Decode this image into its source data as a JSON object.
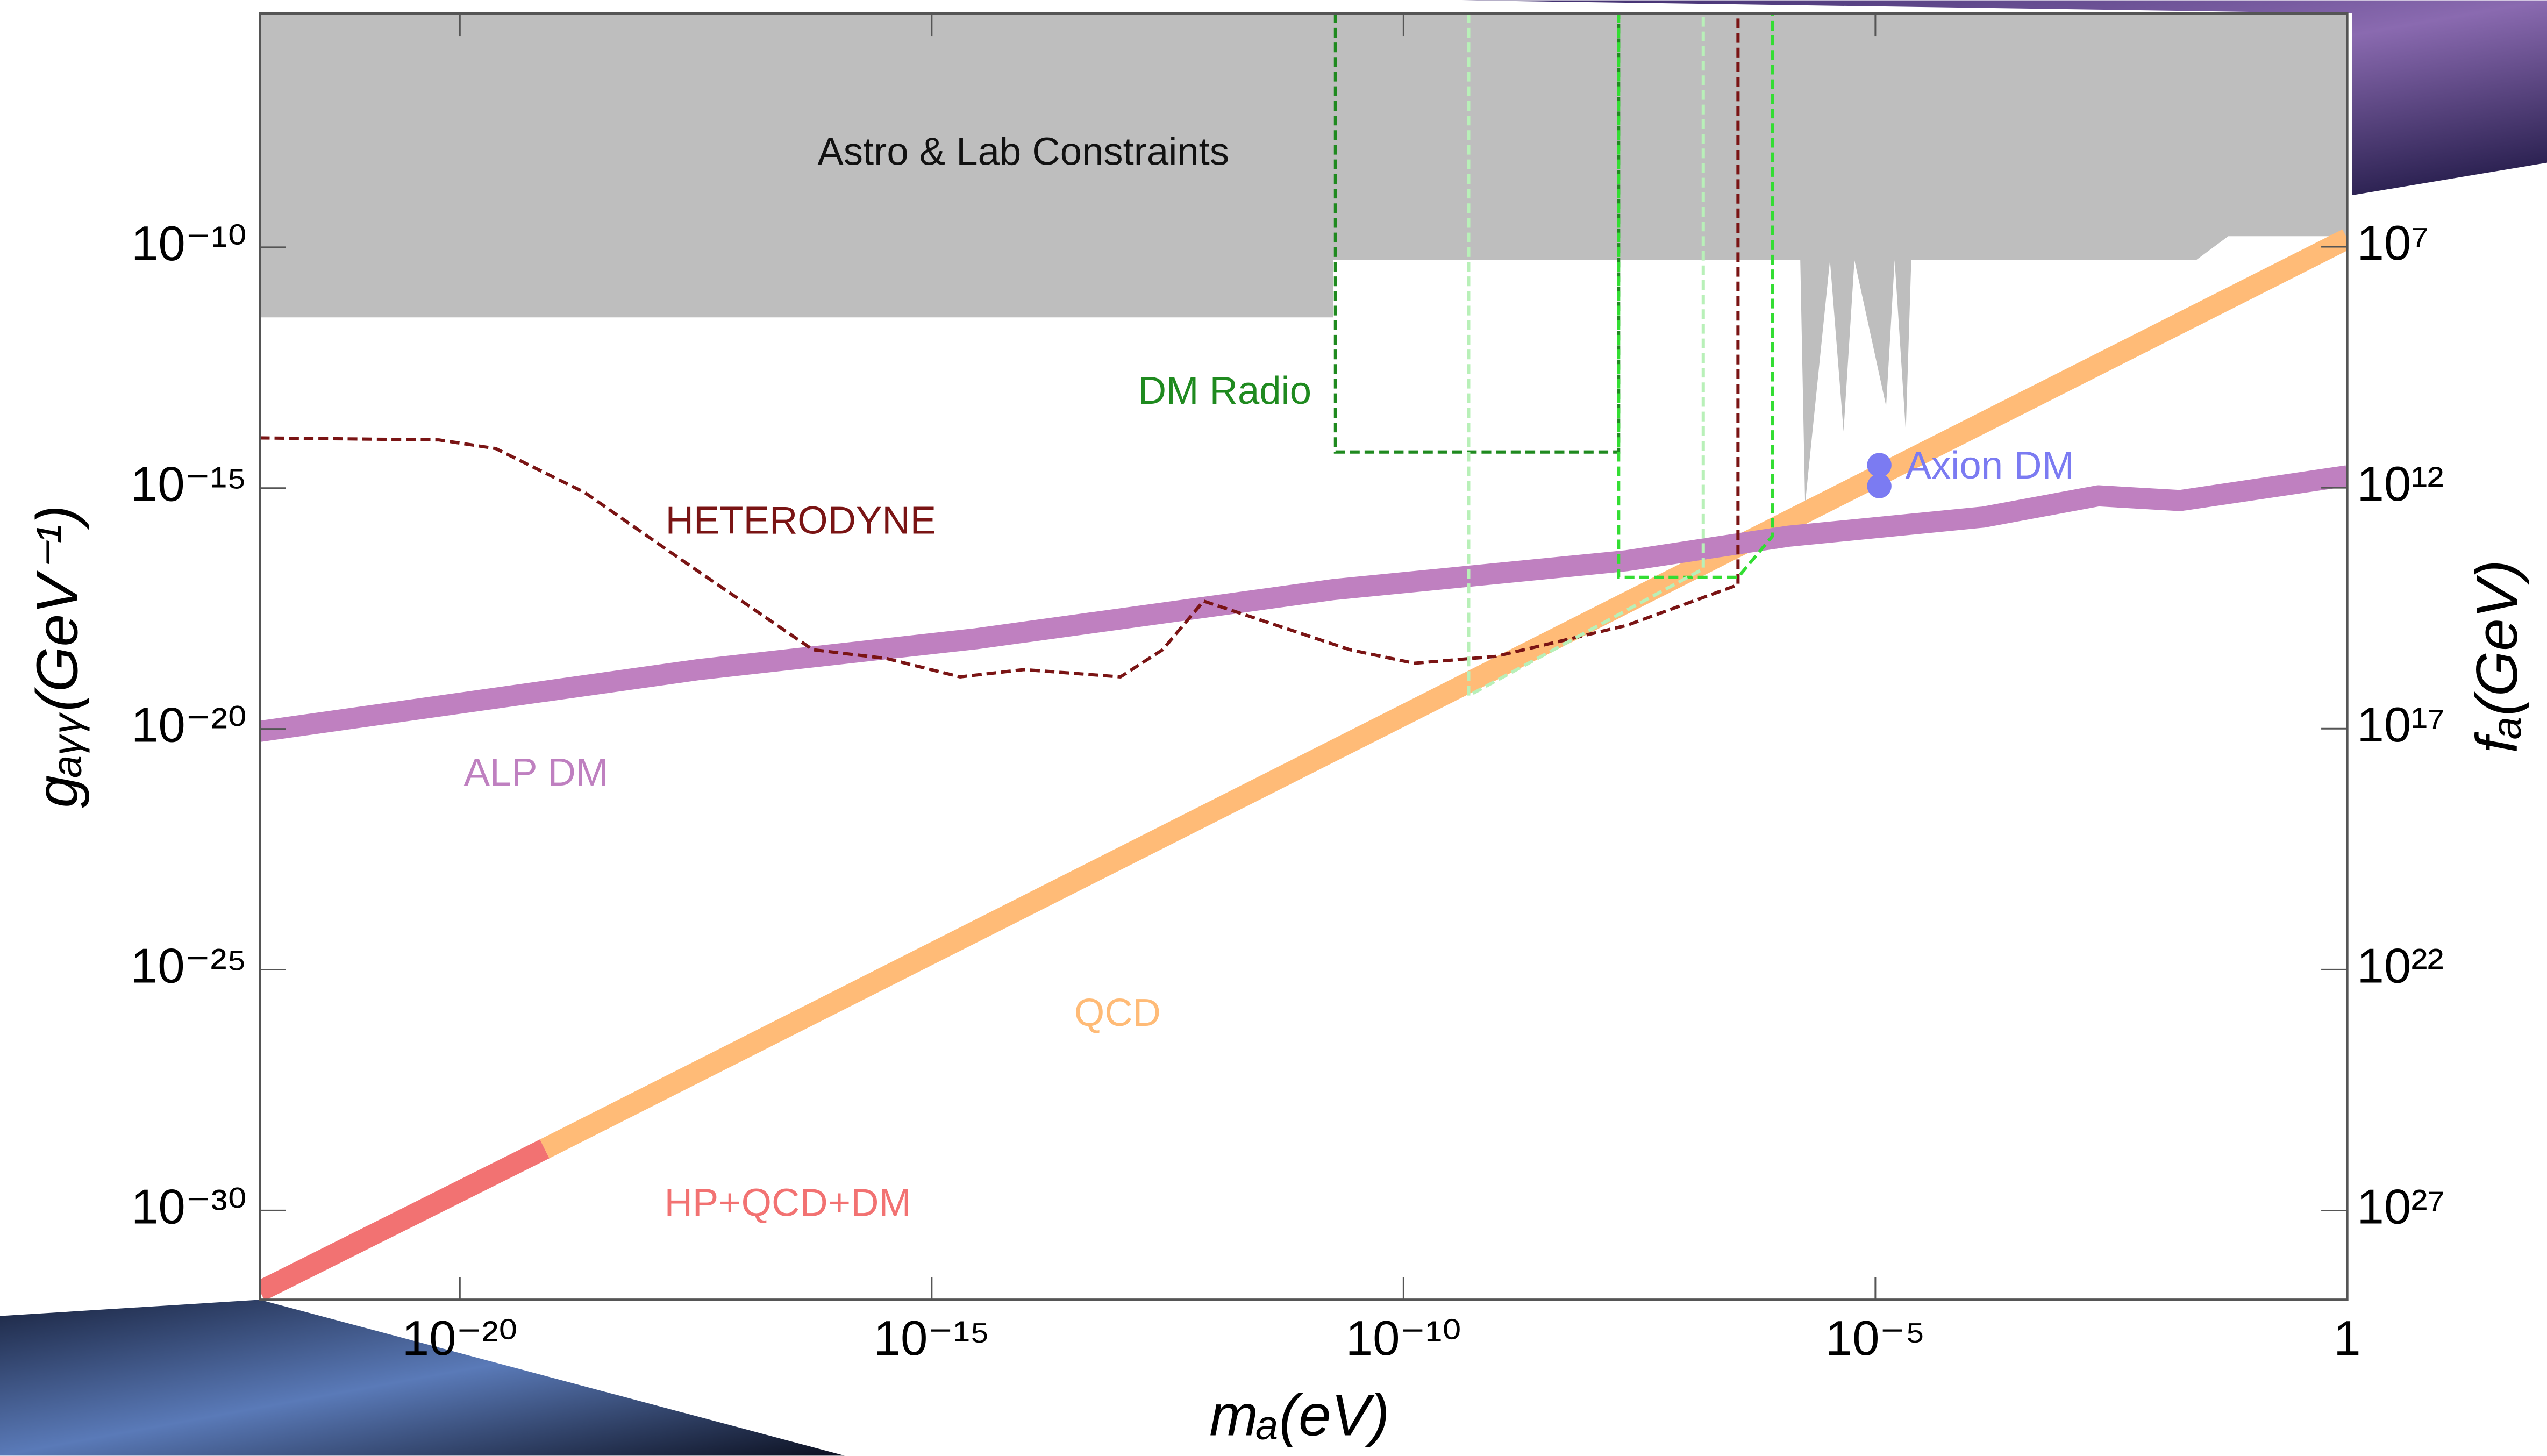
{
  "chart_data": {
    "type": "line",
    "x_label": "mₐ(eV)",
    "y_label": "gₐᵧᵧ(GeV⁻¹)",
    "y2_label": "fₐ(GeV)",
    "log_x": true,
    "log_y": true,
    "xlim": [
      7.6e-23,
      1
    ],
    "ylim": [
      1.4e-32,
      7.2e-06
    ],
    "y2lim": [
      7.1e+28,
      143
    ],
    "xticks": [
      {
        "value": 1e-20,
        "label": "10⁻²⁰"
      },
      {
        "value": 1e-15,
        "label": "10⁻¹⁵"
      },
      {
        "value": 1e-10,
        "label": "10⁻¹⁰"
      },
      {
        "value": 1e-05,
        "label": "10⁻⁵"
      },
      1
    ],
    "yticks": [
      {
        "value": 1e-30,
        "label": "10⁻³⁰"
      },
      {
        "value": 1e-25,
        "label": "10⁻²⁵"
      },
      {
        "value": 1e-20,
        "label": "10⁻²⁰"
      },
      {
        "value": 1e-15,
        "label": "10⁻¹⁵"
      },
      {
        "value": 1e-10,
        "label": "10⁻¹⁰"
      }
    ],
    "y2ticks": [
      {
        "value": 1e+27,
        "label": "10²⁷"
      },
      {
        "value": 1e+22,
        "label": "10²²"
      },
      {
        "value": 1e+17,
        "label": "10¹⁷"
      },
      {
        "value": 1000000000000.0,
        "label": "10¹²"
      },
      {
        "value": 10000000.0,
        "label": "10⁷"
      }
    ],
    "series": [
      {
        "name": "Astro & Lab Constraints",
        "kind": "area",
        "color": "#bebebe",
        "x": [
          7.6e-23,
          1.8e-11,
          1.8e-11,
          1.6e-06,
          1.8e-06,
          3.3e-06,
          4.6e-06,
          6e-06,
          1.3e-05,
          1.6e-05,
          2.1e-05,
          2.4e-05,
          0.025,
          0.055,
          1
        ],
        "values": [
          3.5e-12,
          3.5e-12,
          5.4e-11,
          5.4e-11,
          4.7e-16,
          5.4e-11,
          1.5e-14,
          5.4e-11,
          5e-14,
          5.4e-11,
          1.5e-14,
          5.4e-11,
          5.4e-11,
          1.7e-10,
          1.7e-10
        ]
      },
      {
        "name": "QCD",
        "kind": "band",
        "color": "#ffbb77",
        "x": [
          7.9e-20,
          1
        ],
        "values": [
          1.9e-29,
          1.5e-10
        ]
      },
      {
        "name": "HP+QCD+DM",
        "kind": "band",
        "color": "#f27272",
        "x": [
          7.6e-23,
          7.9e-20
        ],
        "values": [
          2.1e-32,
          1.9e-29
        ]
      },
      {
        "name": "ALP DM",
        "kind": "band",
        "color": "#bf80c0",
        "x": [
          7.6e-23,
          3.4e-18,
          2.9e-15,
          1.8e-11,
          2.3e-08,
          1.2e-06,
          0.00014,
          0.0023,
          0.017,
          1
        ],
        "values": [
          8.9e-21,
          1.7e-19,
          7.4e-19,
          7.8e-18,
          3.1e-17,
          1e-16,
          2.5e-16,
          6.9e-16,
          5.5e-16,
          1.8e-15
        ]
      },
      {
        "name": "HETERODYNE",
        "kind": "dashed",
        "color": "#7a1414",
        "x": [
          7.6e-23,
          6e-21,
          2.4e-20,
          2.1e-19,
          2.3e-18,
          5.5e-17,
          3.3e-16,
          2e-15,
          9.5e-15,
          1e-13,
          2.8e-13,
          7.6e-13,
          2e-12,
          2.7e-11,
          1.3e-10,
          9.5e-10,
          2.3e-08,
          3.5e-07,
          3.5e-07
        ],
        "values": [
          1.1e-14,
          1e-14,
          6.6e-15,
          8.1e-16,
          3.1e-17,
          4.4e-19,
          2.9e-19,
          1.2e-19,
          1.7e-19,
          1.2e-19,
          4.4e-19,
          4.5e-18,
          2.4e-18,
          4.4e-19,
          2.3e-19,
          3.2e-19,
          1.4e-18,
          9.8e-18,
          7.2e-06
        ]
      },
      {
        "name": "DM Radio",
        "kind": "dashed",
        "color": "#1f8a1f",
        "x": [
          1.9e-11,
          1.9e-11,
          1.9e-08,
          1.9e-08
        ],
        "values": [
          7.2e-06,
          5.6e-15,
          5.6e-15,
          7.2e-06
        ]
      },
      {
        "kind": "dashed",
        "color": "#33dd33",
        "x": [
          1.9e-08,
          1.9e-08,
          3.5e-07,
          8.1e-07,
          8.1e-07
        ],
        "values": [
          7.2e-06,
          1.4e-17,
          1.4e-17,
          1e-16,
          7.2e-06
        ]
      },
      {
        "kind": "dashed",
        "color": "#b8f0b8",
        "x": [
          4.9e-10,
          4.9e-10,
          1.5e-07,
          1.5e-07
        ],
        "values": [
          7.2e-06,
          4.9e-20,
          2.1e-17,
          7.2e-06
        ]
      },
      {
        "name": "Axion DM",
        "kind": "scatter",
        "color": "#7b7bf2",
        "x": [
          1.1e-05,
          1.1e-05
        ],
        "values": [
          3e-15,
          1.1e-15
        ]
      }
    ]
  }
}
